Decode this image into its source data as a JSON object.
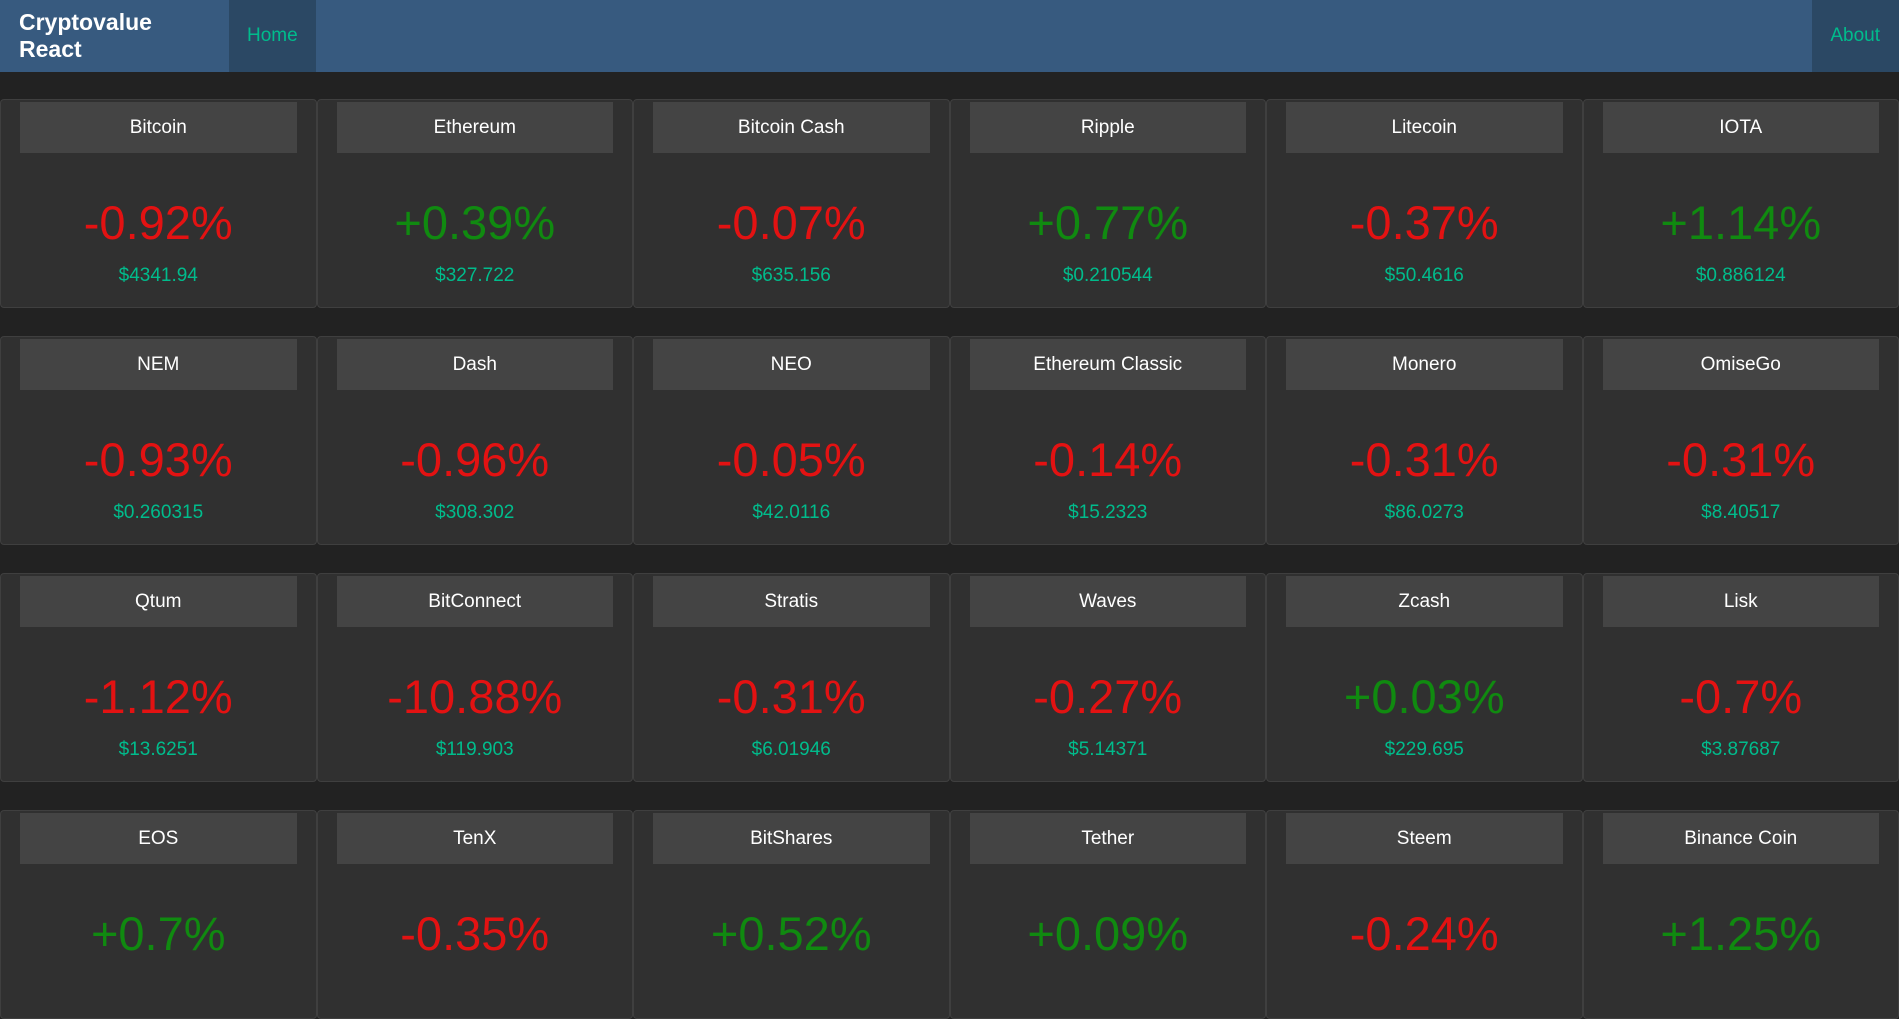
{
  "navbar": {
    "brand": "Cryptovalue React",
    "home_label": "Home",
    "about_label": "About"
  },
  "colors": {
    "navbar_bg": "#375a7f",
    "accent": "#00bc8c",
    "negative": "#e31212",
    "positive": "#108a10"
  },
  "coins": [
    {
      "name": "Bitcoin",
      "change": "-0.92%",
      "price": "$4341.94",
      "trend": "neg"
    },
    {
      "name": "Ethereum",
      "change": "+0.39%",
      "price": "$327.722",
      "trend": "pos"
    },
    {
      "name": "Bitcoin Cash",
      "change": "-0.07%",
      "price": "$635.156",
      "trend": "neg"
    },
    {
      "name": "Ripple",
      "change": "+0.77%",
      "price": "$0.210544",
      "trend": "pos"
    },
    {
      "name": "Litecoin",
      "change": "-0.37%",
      "price": "$50.4616",
      "trend": "neg"
    },
    {
      "name": "IOTA",
      "change": "+1.14%",
      "price": "$0.886124",
      "trend": "pos"
    },
    {
      "name": "NEM",
      "change": "-0.93%",
      "price": "$0.260315",
      "trend": "neg"
    },
    {
      "name": "Dash",
      "change": "-0.96%",
      "price": "$308.302",
      "trend": "neg"
    },
    {
      "name": "NEO",
      "change": "-0.05%",
      "price": "$42.0116",
      "trend": "neg"
    },
    {
      "name": "Ethereum Classic",
      "change": "-0.14%",
      "price": "$15.2323",
      "trend": "neg"
    },
    {
      "name": "Monero",
      "change": "-0.31%",
      "price": "$86.0273",
      "trend": "neg"
    },
    {
      "name": "OmiseGo",
      "change": "-0.31%",
      "price": "$8.40517",
      "trend": "neg"
    },
    {
      "name": "Qtum",
      "change": "-1.12%",
      "price": "$13.6251",
      "trend": "neg"
    },
    {
      "name": "BitConnect",
      "change": "-10.88%",
      "price": "$119.903",
      "trend": "neg"
    },
    {
      "name": "Stratis",
      "change": "-0.31%",
      "price": "$6.01946",
      "trend": "neg"
    },
    {
      "name": "Waves",
      "change": "-0.27%",
      "price": "$5.14371",
      "trend": "neg"
    },
    {
      "name": "Zcash",
      "change": "+0.03%",
      "price": "$229.695",
      "trend": "pos"
    },
    {
      "name": "Lisk",
      "change": "-0.7%",
      "price": "$3.87687",
      "trend": "neg"
    },
    {
      "name": "EOS",
      "change": "+0.7%",
      "price": "",
      "trend": "pos"
    },
    {
      "name": "TenX",
      "change": "-0.35%",
      "price": "",
      "trend": "neg"
    },
    {
      "name": "BitShares",
      "change": "+0.52%",
      "price": "",
      "trend": "pos"
    },
    {
      "name": "Tether",
      "change": "+0.09%",
      "price": "",
      "trend": "pos"
    },
    {
      "name": "Steem",
      "change": "-0.24%",
      "price": "",
      "trend": "neg"
    },
    {
      "name": "Binance Coin",
      "change": "+1.25%",
      "price": "",
      "trend": "pos"
    }
  ]
}
